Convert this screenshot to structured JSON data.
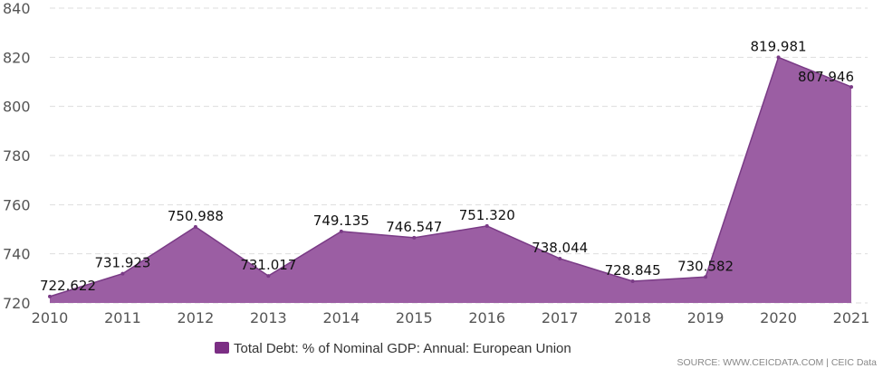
{
  "chart_data": {
    "type": "area",
    "x": [
      "2010",
      "2011",
      "2012",
      "2013",
      "2014",
      "2015",
      "2016",
      "2017",
      "2018",
      "2019",
      "2020",
      "2021"
    ],
    "series": [
      {
        "name": "Total Debt: % of Nominal GDP: Annual: European Union",
        "values": [
          722.622,
          731.923,
          750.988,
          731.017,
          749.135,
          746.547,
          751.32,
          738.044,
          728.845,
          730.582,
          819.981,
          807.946
        ],
        "labels": [
          "722.622",
          "731.923",
          "750.988",
          "731.017",
          "749.135",
          "746.547",
          "751.320",
          "738.044",
          "728.845",
          "730.582",
          "819.981",
          "807.946"
        ]
      }
    ],
    "y_ticks": [
      "720",
      "740",
      "760",
      "780",
      "800",
      "820",
      "840"
    ],
    "ylim": [
      720,
      840
    ],
    "grid": "horizontal dashed",
    "legend": "bottom-center",
    "colors": {
      "area": "#9b5ea3",
      "line": "#7a3b86",
      "legend_swatch": "#7b2e84",
      "grid": "#dddddd"
    }
  },
  "source": "SOURCE: WWW.CEICDATA.COM | CEIC Data"
}
